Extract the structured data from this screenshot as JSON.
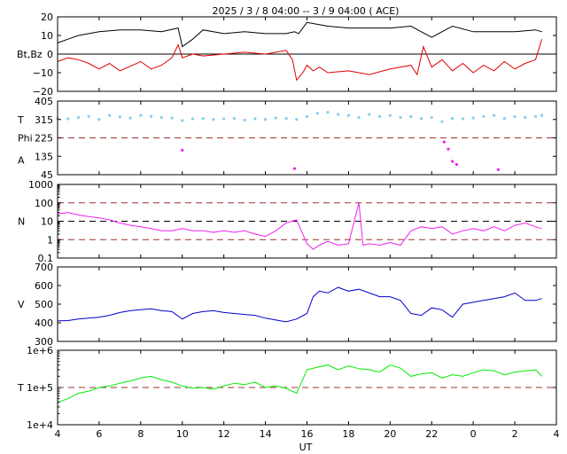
{
  "chart_data": {
    "type": "line",
    "title": "2025 /  3 /  8   04:00 -- 3 /  9   04:00 ( ACE)",
    "xlabel": "UT",
    "x_ticks": [
      "4",
      "6",
      "8",
      "10",
      "12",
      "14",
      "16",
      "18",
      "20",
      "22",
      "0",
      "2",
      "4"
    ],
    "x_range_hours": [
      4,
      28
    ],
    "panels": [
      {
        "id": "mag",
        "ylabels": [
          "Bt,Bz"
        ],
        "ylim": [
          -20,
          20
        ],
        "yticks": [
          "20",
          "10",
          "0",
          "−10",
          "−20"
        ],
        "ytick_values": [
          20,
          10,
          0,
          -10,
          -20
        ],
        "ref_lines": [
          {
            "value": 0,
            "style": "solid",
            "color": "#000000"
          }
        ],
        "series": [
          {
            "color": "#000000",
            "x": [
              4,
              4.5,
              5,
              5.5,
              6,
              7,
              8,
              9,
              9.8,
              10,
              10.5,
              11,
              12,
              13,
              14,
              15,
              15.4,
              15.6,
              16,
              16.5,
              17,
              18,
              19,
              20,
              21,
              21.5,
              22,
              23,
              0,
              1,
              2,
              3,
              3.3
            ],
            "y": [
              6,
              8,
              10,
              11,
              12,
              13,
              13,
              12,
              14,
              4,
              8,
              13,
              11,
              12,
              11,
              11,
              12,
              11,
              17,
              16,
              15,
              14,
              14,
              14,
              15,
              12,
              9,
              15,
              12,
              12,
              12,
              13,
              12
            ]
          },
          {
            "color": "#e00000",
            "x": [
              4,
              4.5,
              5,
              5.5,
              6,
              6.5,
              7,
              8,
              8.5,
              9,
              9.5,
              9.8,
              10,
              10.5,
              11,
              12,
              13,
              14,
              15,
              15.3,
              15.5,
              15.8,
              16,
              16.3,
              16.6,
              17,
              18,
              19,
              20,
              21,
              21.3,
              21.6,
              22,
              22.5,
              23,
              23.5,
              0,
              0.5,
              1,
              1.5,
              2,
              2.5,
              3,
              3.3
            ],
            "y": [
              -4,
              -2,
              -3,
              -5,
              -8,
              -5,
              -9,
              -4,
              -8,
              -6,
              -2,
              5,
              -2,
              0,
              -1,
              0,
              1,
              0,
              2,
              -3,
              -14,
              -10,
              -6,
              -9,
              -7,
              -10,
              -9,
              -11,
              -8,
              -6,
              -11,
              4,
              -7,
              -3,
              -9,
              -5,
              -10,
              -6,
              -9,
              -4,
              -8,
              -5,
              -3,
              8
            ]
          }
        ]
      },
      {
        "id": "angle",
        "ylabels": [
          "T",
          "Phi",
          "A"
        ],
        "ylim": [
          45,
          405
        ],
        "yticks": [
          "405",
          "315",
          "225",
          "135",
          "45"
        ],
        "ytick_values": [
          405,
          315,
          225,
          135,
          45
        ],
        "ref_lines": [
          {
            "value": 225,
            "style": "dashed",
            "color": "#a03030"
          }
        ],
        "series": [
          {
            "color": "#88ccee",
            "marker": "dot",
            "x": [
              4,
              4.5,
              5,
              5.5,
              6,
              6.5,
              7,
              7.5,
              8,
              8.5,
              9,
              9.5,
              10,
              10.5,
              11,
              11.5,
              12,
              12.5,
              13,
              13.5,
              14,
              14.5,
              15,
              15.5,
              16,
              16.5,
              17,
              17.5,
              18,
              18.5,
              19,
              19.5,
              20,
              20.5,
              21,
              21.5,
              22,
              22.5,
              23,
              23.5,
              0,
              0.5,
              1,
              1.5,
              2,
              2.5,
              3,
              3.3
            ],
            "y": [
              320,
              318,
              325,
              330,
              315,
              335,
              328,
              322,
              335,
              330,
              325,
              322,
              310,
              318,
              320,
              315,
              318,
              320,
              312,
              318,
              315,
              322,
              320,
              315,
              330,
              345,
              350,
              340,
              335,
              325,
              340,
              330,
              335,
              325,
              330,
              320,
              325,
              305,
              320,
              318,
              322,
              330,
              335,
              320,
              330,
              325,
              330,
              335
            ]
          },
          {
            "color": "#ee22ee",
            "marker": "dot",
            "x": [
              10,
              15.4,
              22.6,
              22.8,
              23,
              23.2,
              1.2
            ],
            "y": [
              165,
              75,
              205,
              170,
              110,
              95,
              70
            ]
          }
        ]
      },
      {
        "id": "density",
        "ylabels": [
          "N"
        ],
        "scale": "log",
        "ylim": [
          0.1,
          1000
        ],
        "yticks": [
          "1000",
          "100",
          "10",
          "1",
          "0.1"
        ],
        "ytick_values": [
          1000,
          100,
          10,
          1,
          0.1
        ],
        "ref_lines": [
          {
            "value": 100,
            "style": "dashed",
            "color": "#a03030"
          },
          {
            "value": 10,
            "style": "dashed",
            "color": "#000000"
          },
          {
            "value": 1,
            "style": "dashed",
            "color": "#a03030"
          }
        ],
        "series": [
          {
            "color": "#ee22ee",
            "x": [
              4,
              4.5,
              5,
              5.5,
              6,
              6.5,
              7,
              7.5,
              8,
              8.5,
              9,
              9.5,
              10,
              10.5,
              11,
              11.5,
              12,
              12.5,
              13,
              13.5,
              14,
              14.5,
              15,
              15.5,
              16,
              16.3,
              16.6,
              17,
              17.5,
              18,
              18.5,
              18.7,
              19,
              19.5,
              20,
              20.5,
              21,
              21.5,
              22,
              22.5,
              23,
              23.5,
              0,
              0.5,
              1,
              1.5,
              2,
              2.5,
              3,
              3.3
            ],
            "y": [
              25,
              30,
              22,
              18,
              15,
              12,
              8,
              6,
              5,
              4,
              3,
              3,
              4,
              3,
              3,
              2.5,
              3,
              2.5,
              3,
              2,
              1.5,
              3,
              8,
              12,
              0.6,
              0.3,
              0.5,
              0.8,
              0.5,
              0.6,
              100,
              0.5,
              0.6,
              0.5,
              0.7,
              0.5,
              3,
              5,
              4,
              5,
              2,
              3,
              4,
              3,
              5,
              3,
              6,
              8,
              5,
              4
            ]
          }
        ]
      },
      {
        "id": "speed",
        "ylabels": [
          "V"
        ],
        "ylim": [
          300,
          700
        ],
        "yticks": [
          "700",
          "600",
          "500",
          "400",
          "300"
        ],
        "ytick_values": [
          700,
          600,
          500,
          400,
          300
        ],
        "ref_lines": [],
        "series": [
          {
            "color": "#0000cc",
            "x": [
              4,
              4.5,
              5,
              5.5,
              6,
              6.5,
              7,
              7.5,
              8,
              8.5,
              9,
              9.5,
              10,
              10.5,
              11,
              11.5,
              12,
              12.5,
              13,
              13.5,
              14,
              14.5,
              15,
              15.5,
              16,
              16.3,
              16.6,
              17,
              17.5,
              18,
              18.5,
              19,
              19.5,
              20,
              20.5,
              21,
              21.5,
              22,
              22.5,
              23,
              23.5,
              0,
              0.5,
              1,
              1.5,
              2,
              2.5,
              3,
              3.3
            ],
            "y": [
              410,
              412,
              420,
              425,
              430,
              440,
              455,
              465,
              470,
              475,
              465,
              460,
              420,
              450,
              460,
              465,
              455,
              450,
              445,
              440,
              425,
              415,
              405,
              420,
              450,
              540,
              570,
              560,
              590,
              570,
              580,
              560,
              540,
              540,
              520,
              450,
              440,
              480,
              470,
              430,
              500,
              510,
              520,
              530,
              540,
              560,
              520,
              520,
              530
            ]
          }
        ]
      },
      {
        "id": "temperature",
        "ylabels": [
          "T"
        ],
        "scale": "log",
        "ylim": [
          10000,
          1000000
        ],
        "yticks": [
          "1e+6",
          "1e+5",
          "1e+4"
        ],
        "ytick_values": [
          1000000,
          100000,
          10000
        ],
        "ref_lines": [
          {
            "value": 100000,
            "style": "dashed",
            "color": "#a03030"
          }
        ],
        "series": [
          {
            "color": "#00ee00",
            "x": [
              4,
              4.5,
              5,
              5.5,
              6,
              6.5,
              7,
              7.5,
              8,
              8.5,
              9,
              9.5,
              10,
              10.5,
              11,
              11.5,
              12,
              12.5,
              13,
              13.5,
              14,
              14.5,
              15,
              15.5,
              16,
              16.5,
              17,
              17.5,
              18,
              18.5,
              19,
              19.5,
              20,
              20.5,
              21,
              21.5,
              22,
              22.5,
              23,
              23.5,
              0,
              0.5,
              1,
              1.5,
              2,
              2.5,
              3,
              3.3
            ],
            "y": [
              40000,
              50000,
              70000,
              80000,
              100000,
              110000,
              130000,
              150000,
              180000,
              200000,
              160000,
              140000,
              110000,
              95000,
              100000,
              90000,
              110000,
              130000,
              120000,
              140000,
              100000,
              110000,
              95000,
              70000,
              300000,
              350000,
              400000,
              300000,
              380000,
              320000,
              300000,
              260000,
              400000,
              330000,
              200000,
              230000,
              250000,
              180000,
              220000,
              200000,
              250000,
              300000,
              280000,
              220000,
              260000,
              280000,
              300000,
              200000
            ]
          }
        ]
      }
    ]
  }
}
